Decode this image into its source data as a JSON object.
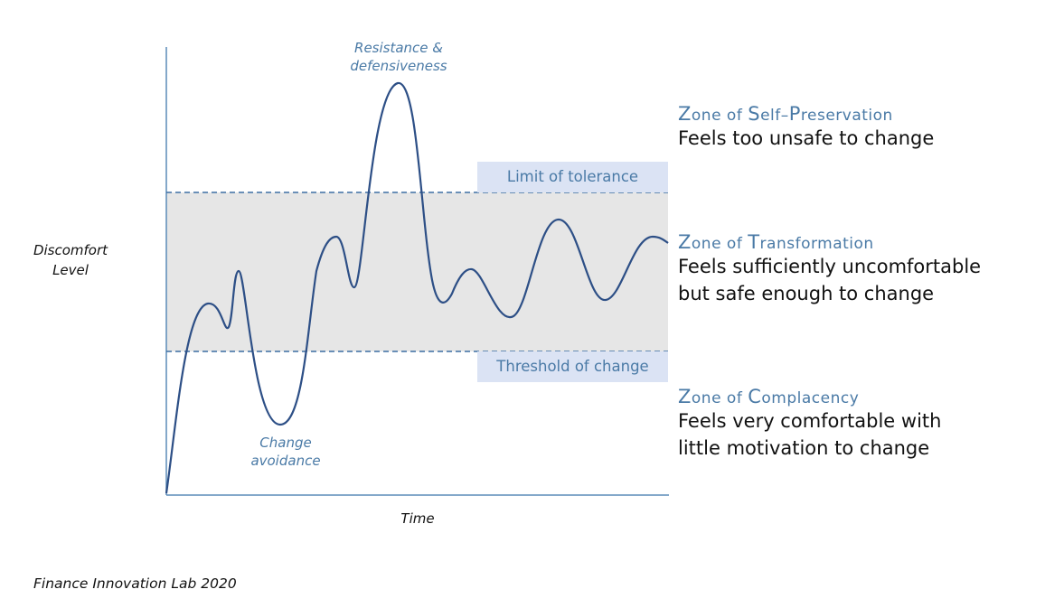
{
  "axes": {
    "y_label": "Discomfort\nLevel",
    "x_label": "Time"
  },
  "lines": {
    "limit_label": "Limit of tolerance",
    "threshold_label": "Threshold of change"
  },
  "annotations": {
    "peak": "Resistance &\ndefensiveness",
    "trough": "Change\navoidance"
  },
  "zones": [
    {
      "title_cap1": "Z",
      "title_rest1": "one of ",
      "title_cap2": "S",
      "title_rest2": "elf–",
      "title_cap3": "P",
      "title_rest3": "reservation",
      "desc": "Feels too unsafe to change"
    },
    {
      "title_cap1": "Z",
      "title_rest1": "one of ",
      "title_cap2": "T",
      "title_rest2": "ransformation",
      "title_cap3": "",
      "title_rest3": "",
      "desc": "Feels sufficiently uncomfortable\nbut safe enough to change"
    },
    {
      "title_cap1": "Z",
      "title_rest1": "one of ",
      "title_cap2": "C",
      "title_rest2": "omplacency",
      "title_cap3": "",
      "title_rest3": "",
      "desc": "Feels very comfortable with\nlittle motivation to change"
    }
  ],
  "credit": "Finance Innovation Lab 2020",
  "colors": {
    "line": "#2d4f86",
    "accent": "#4a7aa6",
    "band": "#e6e6e6",
    "label_bg": "#dbe3f4"
  }
}
